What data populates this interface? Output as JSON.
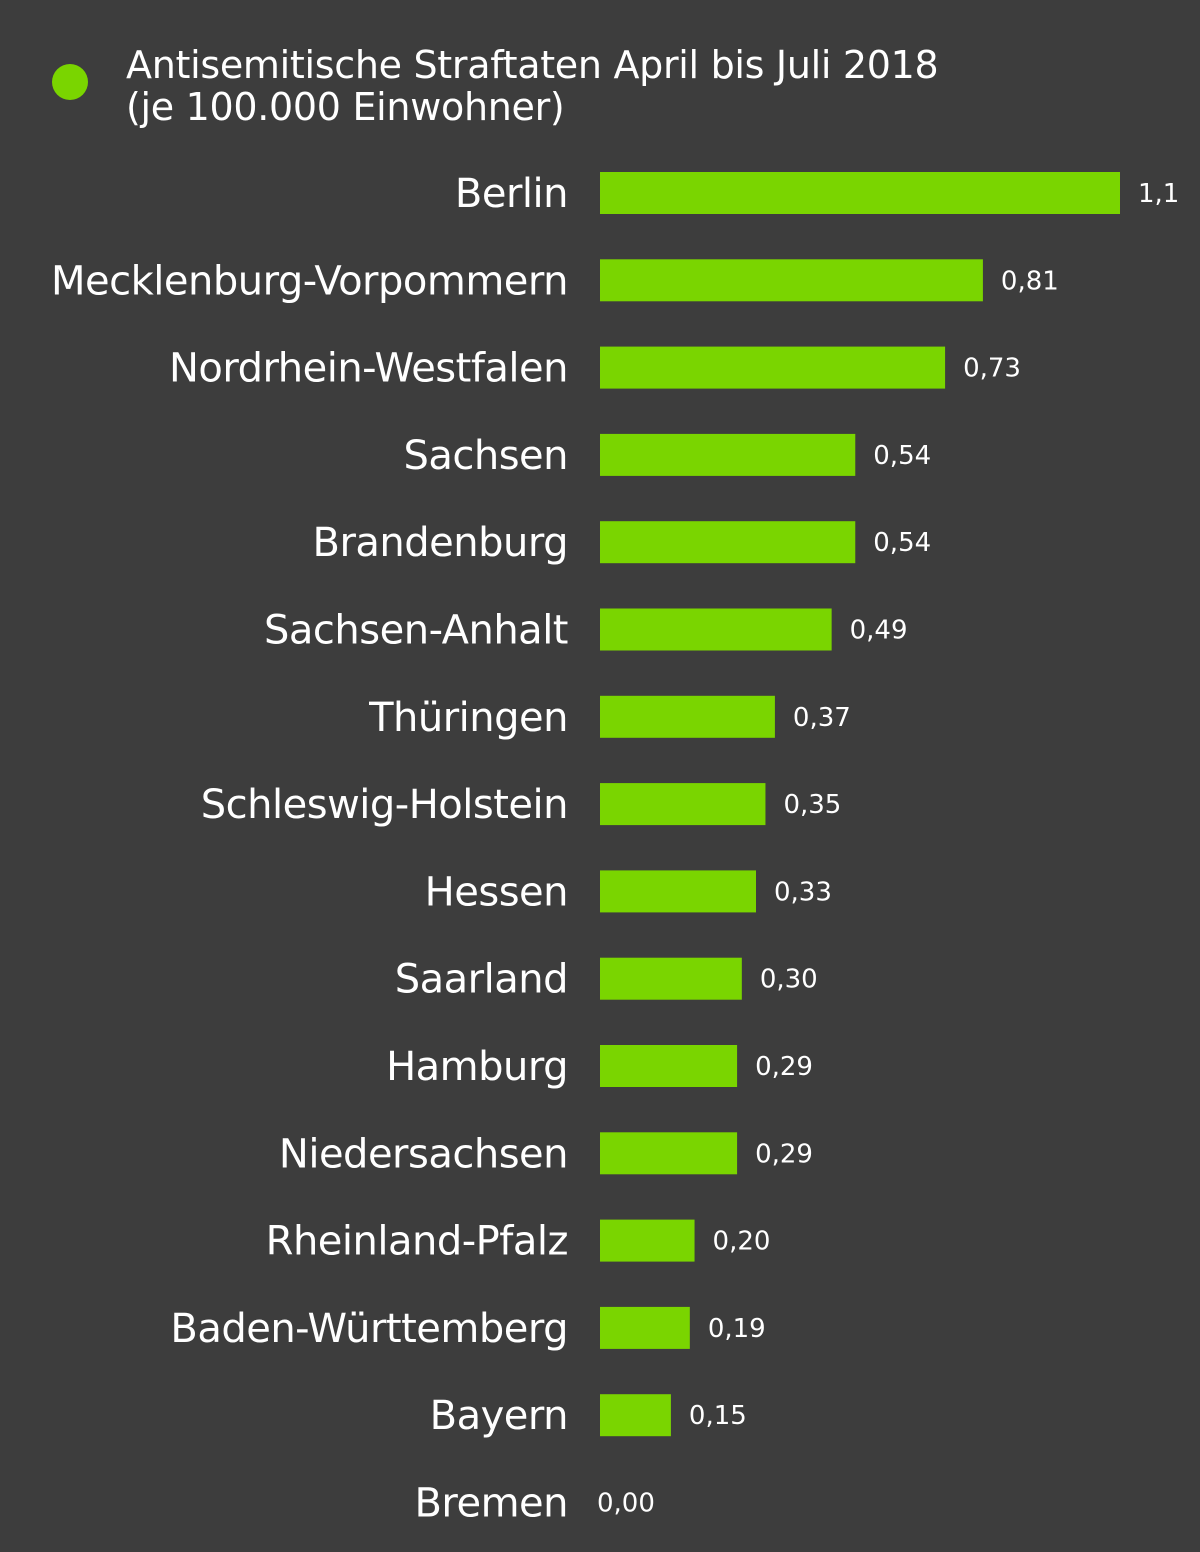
{
  "colors": {
    "background": "#3d3d3d",
    "bar": "#7ad500",
    "text": "#ffffff"
  },
  "chart_data": {
    "type": "bar",
    "orientation": "horizontal",
    "legend": {
      "position": "top-left",
      "entries": [
        "Antisemitische Straftaten April bis Juli 2018",
        "(je 100.000 Einwohner)"
      ]
    },
    "categories": [
      "Berlin",
      "Mecklenburg-Vorpommern",
      "Nordrhein-Westfalen",
      "Sachsen",
      "Brandenburg",
      "Sachsen-Anhalt",
      "Thüringen",
      "Schleswig-Holstein",
      "Hessen",
      "Saarland",
      "Hamburg",
      "Niedersachsen",
      "Rheinland-Pfalz",
      "Baden-Württemberg",
      "Bayern",
      "Bremen"
    ],
    "values": [
      1.1,
      0.81,
      0.73,
      0.54,
      0.54,
      0.49,
      0.37,
      0.35,
      0.33,
      0.3,
      0.29,
      0.29,
      0.2,
      0.19,
      0.15,
      0.0
    ],
    "value_labels": [
      "1,1",
      "0,81",
      "0,73",
      "0,54",
      "0,54",
      "0,49",
      "0,37",
      "0,35",
      "0,33",
      "0,30",
      "0,29",
      "0,29",
      "0,20",
      "0,19",
      "0,15",
      "0,00"
    ],
    "xlim": [
      0,
      1.1
    ],
    "grid": false,
    "axes_visible": false
  }
}
